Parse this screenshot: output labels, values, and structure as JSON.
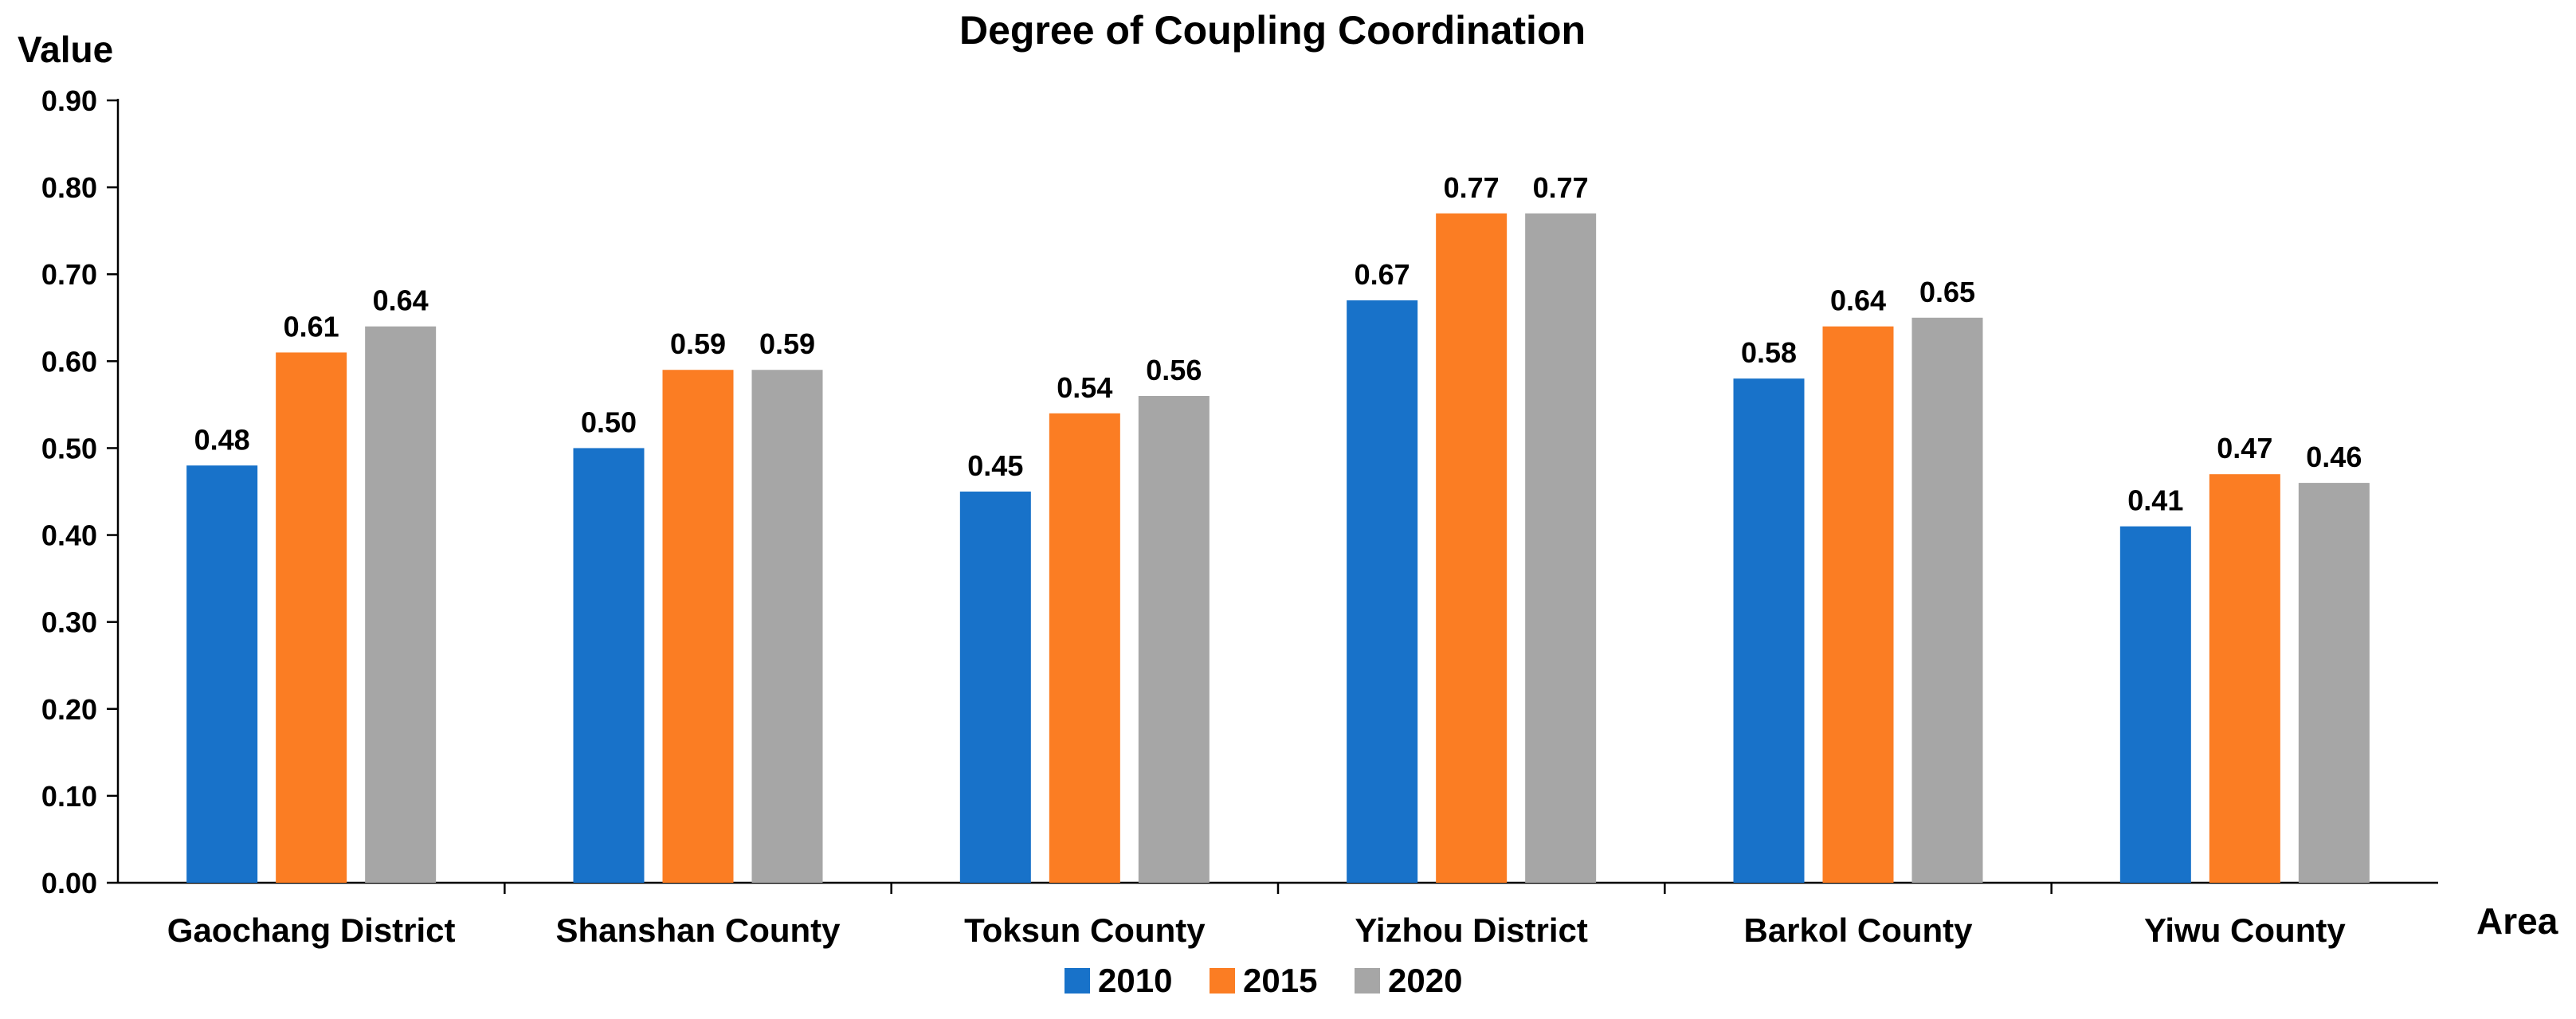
{
  "chart_data": {
    "type": "bar",
    "title": "Degree of Coupling Coordination",
    "ylabel": "Value",
    "xlabel": "Area",
    "ylim": [
      0,
      0.9
    ],
    "yticks": [
      "0.00",
      "0.10",
      "0.20",
      "0.30",
      "0.40",
      "0.50",
      "0.60",
      "0.70",
      "0.80",
      "0.90"
    ],
    "categories": [
      "Gaochang District",
      "Shanshan County",
      "Toksun County",
      "Yizhou District",
      "Barkol County",
      "Yiwu County"
    ],
    "series": [
      {
        "name": "2010",
        "color": "#1872C9",
        "values": [
          0.48,
          0.5,
          0.45,
          0.67,
          0.58,
          0.41
        ],
        "labels": [
          "0.48",
          "0.50",
          "0.45",
          "0.67",
          "0.58",
          "0.41"
        ]
      },
      {
        "name": "2015",
        "color": "#FB7D23",
        "values": [
          0.61,
          0.59,
          0.54,
          0.77,
          0.64,
          0.47
        ],
        "labels": [
          "0.61",
          "0.59",
          "0.54",
          "0.77",
          "0.64",
          "0.47"
        ]
      },
      {
        "name": "2020",
        "color": "#A6A6A6",
        "values": [
          0.64,
          0.59,
          0.56,
          0.77,
          0.65,
          0.46
        ],
        "labels": [
          "0.64",
          "0.59",
          "0.56",
          "0.77",
          "0.65",
          "0.46"
        ]
      }
    ],
    "grid": false,
    "legend_position": "bottom-center"
  }
}
